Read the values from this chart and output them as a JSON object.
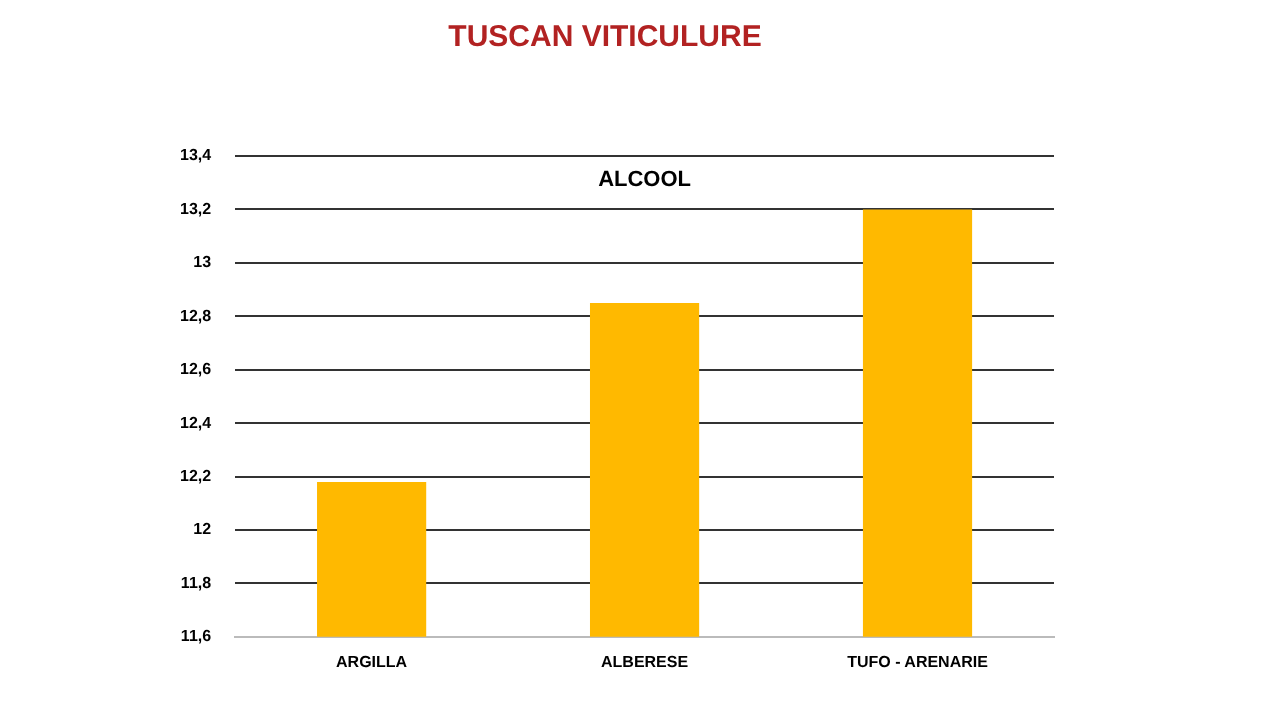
{
  "chart_data": {
    "type": "bar",
    "title": "TUSCAN VITICULURE",
    "subtitle": "ALCOOL",
    "categories": [
      "ARGILLA",
      "ALBERESE",
      "TUFO - ARENARIE"
    ],
    "values": [
      12.18,
      12.85,
      13.2
    ],
    "color": "#ffb900",
    "ylim": [
      11.6,
      13.4
    ],
    "yticks": [
      {
        "value": 11.6,
        "label": "11,6"
      },
      {
        "value": 11.8,
        "label": "11,8"
      },
      {
        "value": 12,
        "label": "12"
      },
      {
        "value": 12.2,
        "label": "12,2"
      },
      {
        "value": 12.4,
        "label": "12,4"
      },
      {
        "value": 12.6,
        "label": "12,6"
      },
      {
        "value": 12.8,
        "label": "12,8"
      },
      {
        "value": 13,
        "label": "13"
      },
      {
        "value": 13.2,
        "label": "13,2"
      },
      {
        "value": 13.4,
        "label": "13,4"
      }
    ],
    "grid": "y"
  }
}
